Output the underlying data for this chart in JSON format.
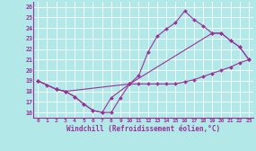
{
  "xlabel": "Windchill (Refroidissement éolien,°C)",
  "xlim": [
    -0.5,
    23.5
  ],
  "ylim": [
    15.5,
    26.5
  ],
  "yticks": [
    16,
    17,
    18,
    19,
    20,
    21,
    22,
    23,
    24,
    25,
    26
  ],
  "xticks": [
    0,
    1,
    2,
    3,
    4,
    5,
    6,
    7,
    8,
    9,
    10,
    11,
    12,
    13,
    14,
    15,
    16,
    17,
    18,
    19,
    20,
    21,
    22,
    23
  ],
  "bg_color": "#b2e8e8",
  "line_color": "#993399",
  "grid_color": "#ffffff",
  "line1_x": [
    0,
    1,
    2,
    3,
    4,
    5,
    6,
    7,
    8,
    9,
    10,
    11,
    12,
    13,
    14,
    15,
    16,
    17,
    18,
    19,
    20,
    21,
    22,
    23
  ],
  "line1_y": [
    19.0,
    18.6,
    18.2,
    18.0,
    17.5,
    16.8,
    16.2,
    16.0,
    16.0,
    17.4,
    18.7,
    18.7,
    18.7,
    18.7,
    18.7,
    18.7,
    18.9,
    19.1,
    19.4,
    19.7,
    20.0,
    20.3,
    20.7,
    21.0
  ],
  "line2_x": [
    0,
    2,
    3,
    4,
    5,
    6,
    7,
    8,
    10,
    11,
    12,
    13,
    14,
    15,
    16,
    17,
    18,
    19,
    20,
    21,
    22,
    23
  ],
  "line2_y": [
    19.0,
    18.2,
    18.0,
    17.5,
    16.8,
    16.2,
    16.0,
    17.4,
    18.7,
    19.5,
    21.7,
    23.2,
    23.9,
    24.5,
    25.6,
    24.8,
    24.2,
    23.5,
    23.5,
    22.8,
    22.2,
    21.0
  ],
  "line3_x": [
    0,
    2,
    3,
    10,
    19,
    20,
    21,
    22,
    23
  ],
  "line3_y": [
    19.0,
    18.2,
    18.0,
    18.7,
    23.5,
    23.5,
    22.8,
    22.2,
    21.0
  ]
}
